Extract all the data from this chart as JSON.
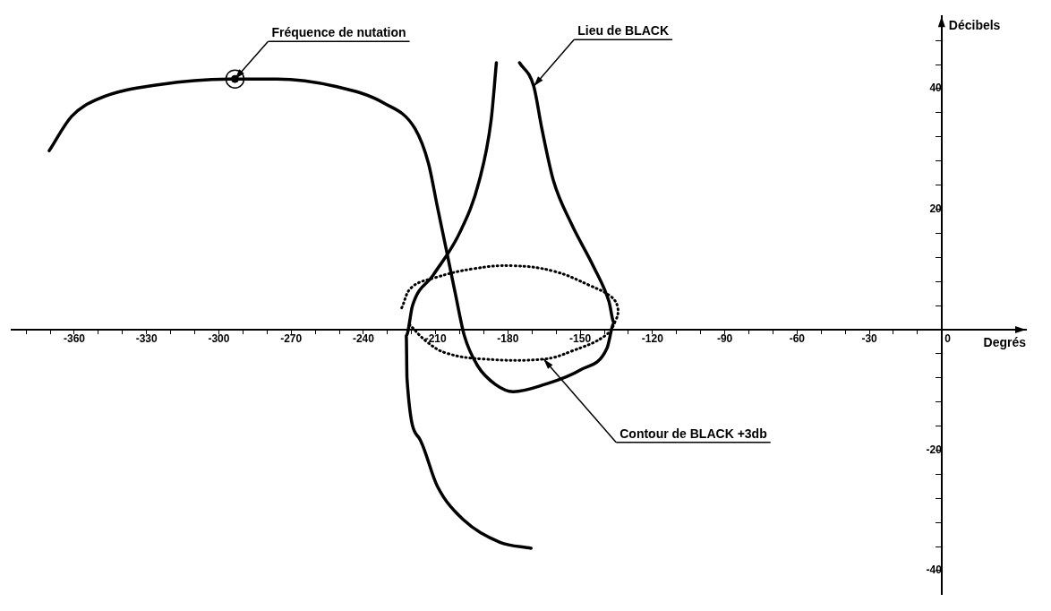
{
  "chart_data": {
    "type": "line",
    "xlabel": "Degrés",
    "ylabel": "Décibels",
    "xlim": [
      -386,
      35
    ],
    "ylim": [
      -44,
      52
    ],
    "xticks": [
      {
        "value": -380,
        "label": null
      },
      {
        "value": -370,
        "label": null
      },
      -360,
      {
        "value": -350,
        "label": null
      },
      {
        "value": -340,
        "label": null
      },
      -330,
      {
        "value": -320,
        "label": null
      },
      {
        "value": -310,
        "label": null
      },
      -300,
      {
        "value": -290,
        "label": null
      },
      {
        "value": -280,
        "label": null
      },
      -270,
      {
        "value": -260,
        "label": null
      },
      {
        "value": -250,
        "label": null
      },
      -240,
      {
        "value": -230,
        "label": null
      },
      {
        "value": -220,
        "label": null
      },
      -210,
      {
        "value": -200,
        "label": null
      },
      {
        "value": -190,
        "label": null
      },
      -180,
      {
        "value": -170,
        "label": null
      },
      {
        "value": -160,
        "label": null
      },
      -150,
      {
        "value": -140,
        "label": null
      },
      {
        "value": -130,
        "label": null
      },
      -120,
      {
        "value": -110,
        "label": null
      },
      {
        "value": -100,
        "label": null
      },
      -90,
      {
        "value": -80,
        "label": null
      },
      {
        "value": -70,
        "label": null
      },
      -60,
      {
        "value": -50,
        "label": null
      },
      {
        "value": -40,
        "label": null
      },
      -30,
      {
        "value": -20,
        "label": null
      },
      {
        "value": -10,
        "label": null
      },
      0
    ],
    "yticks": [
      -40,
      {
        "value": -36,
        "label": null
      },
      {
        "value": -32,
        "label": null
      },
      {
        "value": -28,
        "label": null
      },
      {
        "value": -24,
        "label": null
      },
      -20,
      {
        "value": -16,
        "label": null
      },
      {
        "value": -12,
        "label": null
      },
      {
        "value": -8,
        "label": null
      },
      {
        "value": -4,
        "label": null
      },
      {
        "value": 0,
        "label": null
      },
      {
        "value": 4,
        "label": null
      },
      {
        "value": 8,
        "label": null
      },
      {
        "value": 12,
        "label": null
      },
      {
        "value": 16,
        "label": null
      },
      20,
      {
        "value": 24,
        "label": null
      },
      {
        "value": 28,
        "label": null
      },
      {
        "value": 32,
        "label": null
      },
      {
        "value": 36,
        "label": null
      },
      40,
      {
        "value": 44,
        "label": null
      },
      {
        "value": 48,
        "label": null
      }
    ],
    "grid": false,
    "legend": false,
    "series": [
      {
        "color": "#000000",
        "line_style": "solid",
        "x": [
          -370.4,
          -361.1,
          -350,
          -324.1,
          -293.3,
          -275.9,
          -251.9,
          -231.5,
          -218.5,
          -213,
          -209.3,
          -205.6,
          -201.9,
          -198.1,
          -192.6,
          -185.2,
          -177.8,
          -164.8,
          -150,
          -138.9,
          -135.9,
          -138.1,
          -144.4,
          -153.7,
          -161.1,
          -165.9,
          -169.3,
          -175.2
        ],
        "values": [
          29.7,
          35.4,
          38.3,
          40.7,
          41.6,
          41.6,
          40.4,
          37.6,
          33.3,
          27.6,
          20.4,
          13.3,
          6.1,
          -1,
          -6,
          -9.1,
          -10.3,
          -9.1,
          -6.7,
          -3.1,
          1.1,
          4.7,
          10.4,
          17.6,
          24.7,
          33.3,
          40.4,
          44.3
        ]
      },
      {
        "color": "#000000",
        "line_style": "solid",
        "x": [
          -184.8,
          -187,
          -191.9,
          -200,
          -211.1,
          -219.6,
          -222.2,
          -221.9,
          -216.7,
          -209.3,
          -198.1,
          -183.3,
          -170.4
        ],
        "values": [
          44.3,
          34.7,
          24.7,
          16.1,
          9,
          4,
          -1,
          -8.1,
          -18.1,
          -26,
          -31.7,
          -35.3,
          -36.3
        ]
      },
      {
        "color": "#000000",
        "line_style": "dotted",
        "x": [
          -224.1,
          -220,
          -210.4,
          -194.4,
          -178.1,
          -161.1,
          -145.9,
          -137,
          -134.4,
          -135.2,
          -139.6,
          -153.7,
          -165.2,
          -189.6,
          -205.6,
          -213.7,
          -221.5
        ],
        "values": [
          3.6,
          7,
          8.6,
          10.1,
          10.6,
          9.7,
          7.3,
          5.4,
          3.6,
          1.6,
          -1,
          -3.6,
          -4.9,
          -4.9,
          -3.9,
          -2,
          1.1
        ]
      },
      {
        "type": "scatter",
        "color": "#000000",
        "marker": "circle",
        "x": [
          -293.3
        ],
        "values": [
          41.6
        ]
      }
    ],
    "annotations": [
      {
        "text": "Fréquence de nutation",
        "x": -293.3,
        "y": 41.6
      },
      {
        "text": "Lieu de BLACK",
        "x": -169.3,
        "y": 40.4
      },
      {
        "text": "Contour de BLACK +3db",
        "x": -165.2,
        "y": -4.9
      }
    ]
  }
}
